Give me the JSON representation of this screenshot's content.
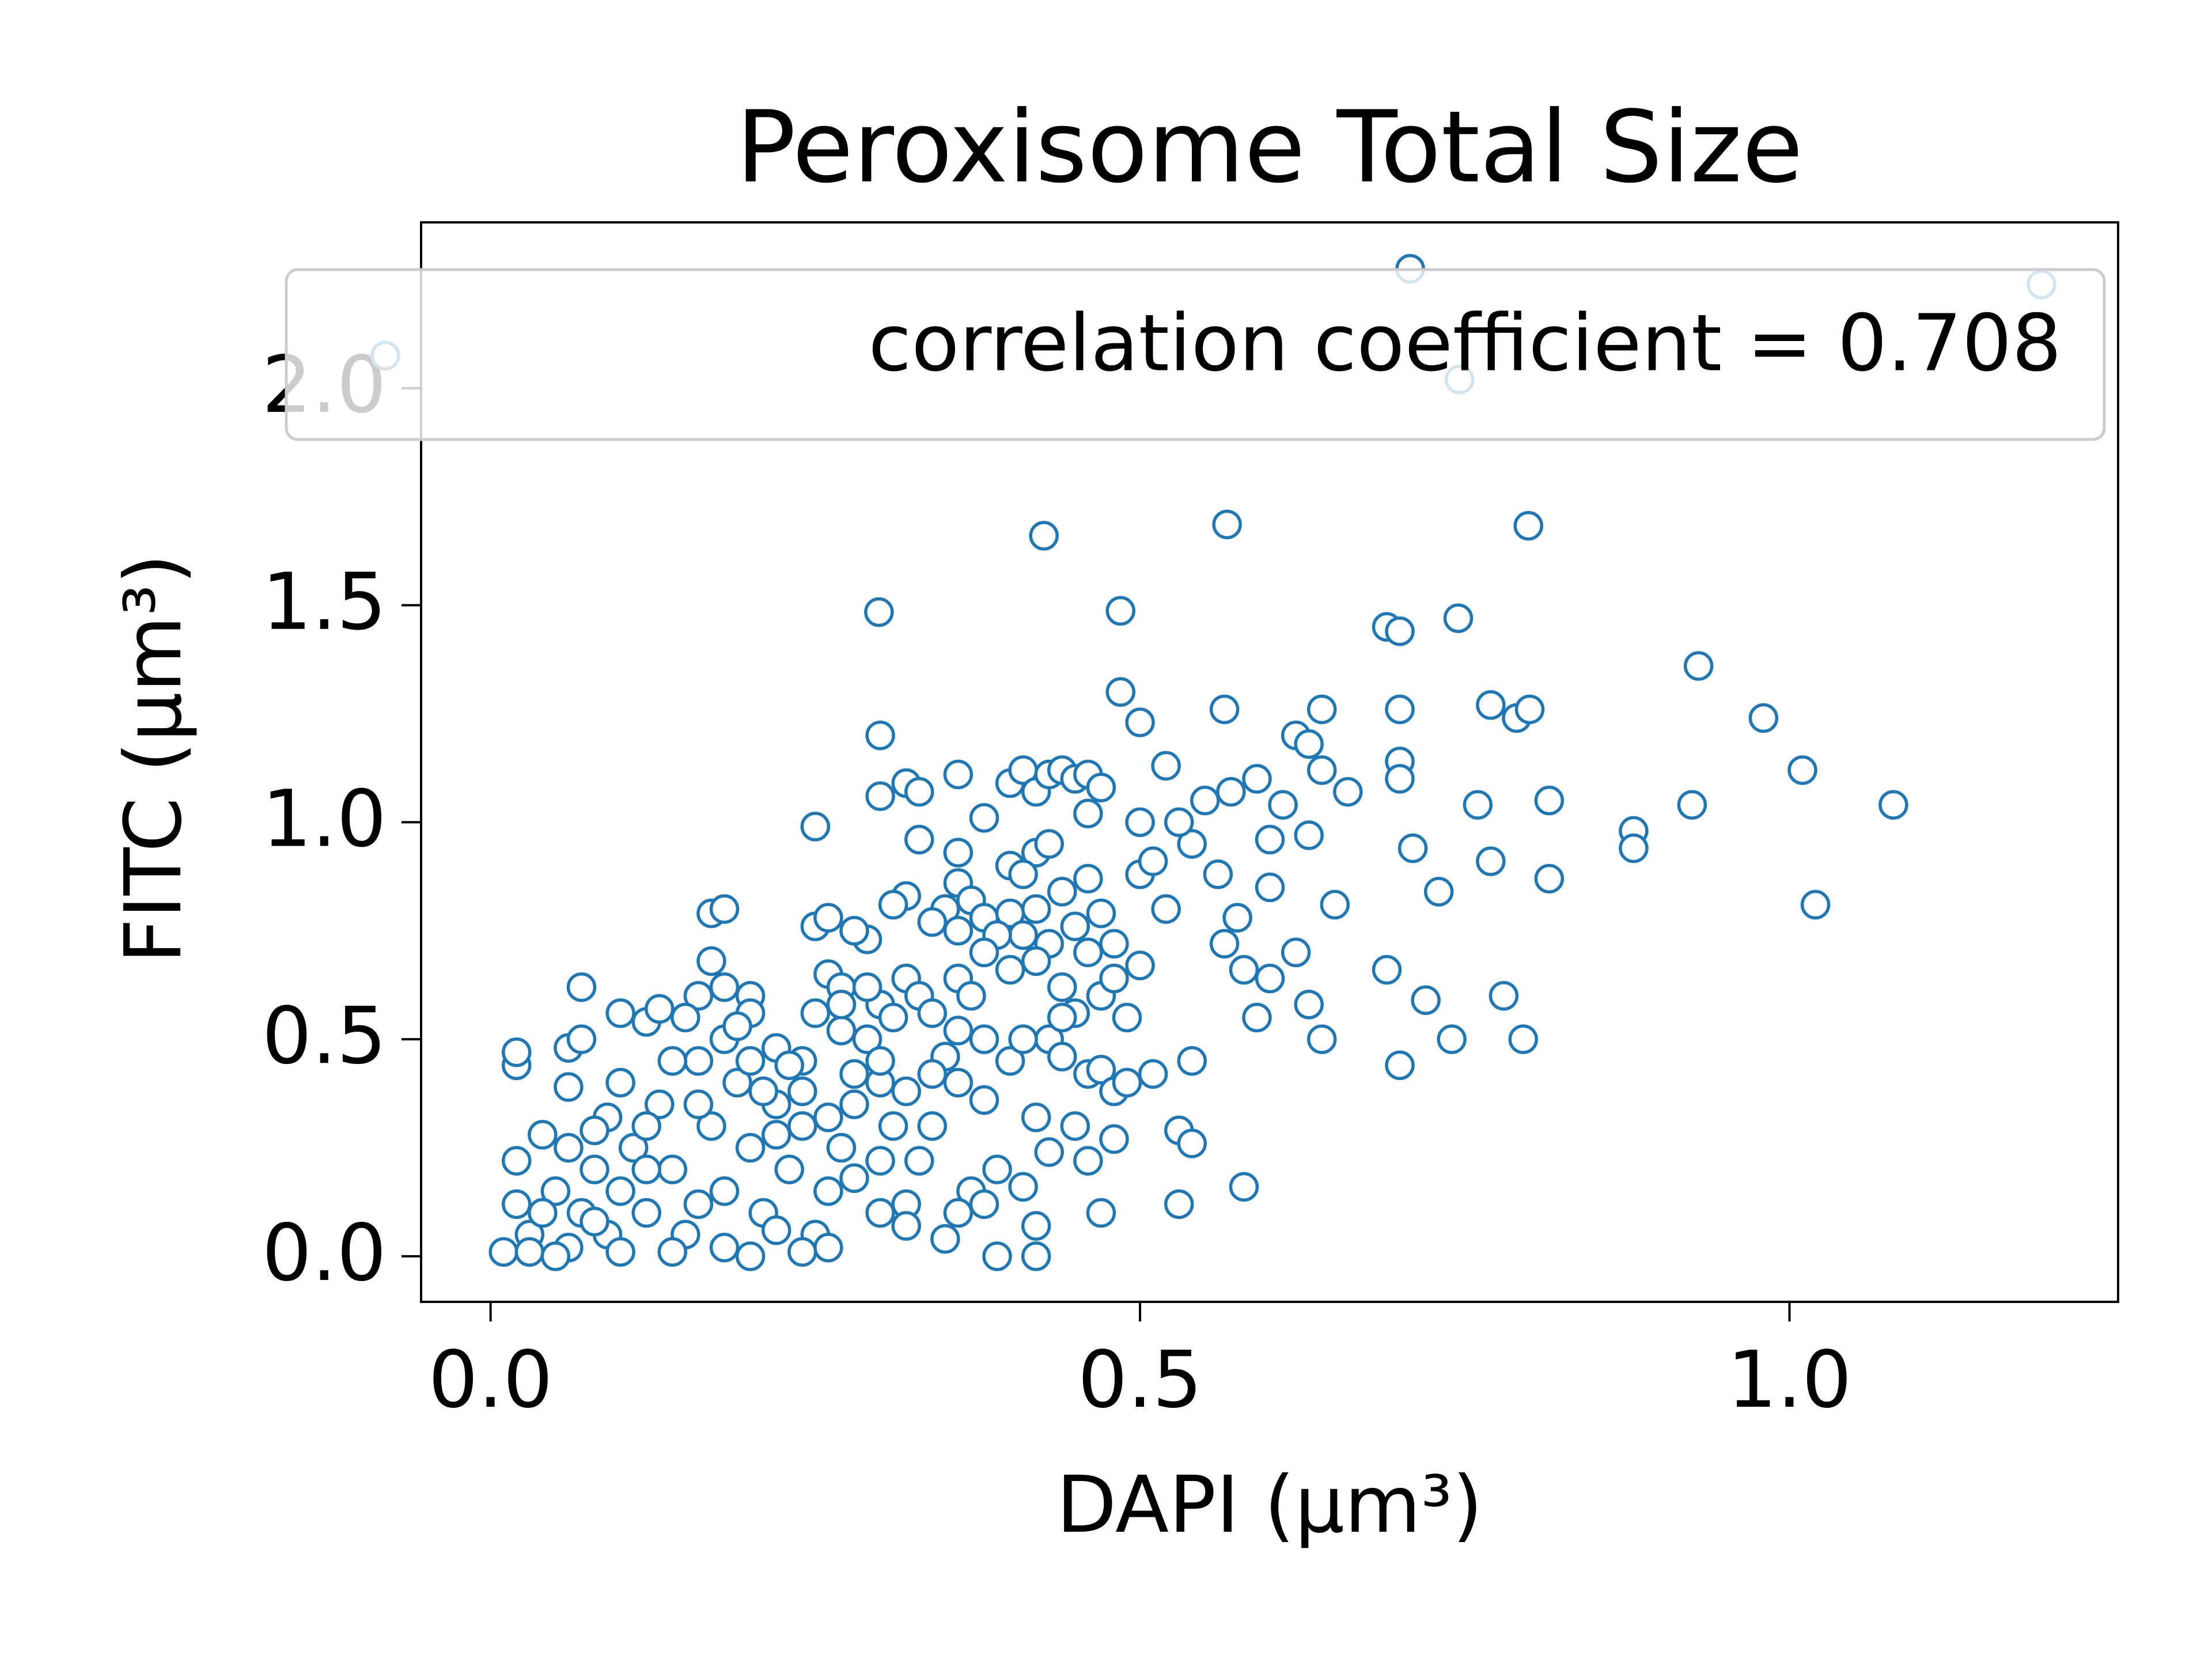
{
  "chart_data": {
    "type": "scatter",
    "title": "Peroxisome Total Size",
    "x_label": "DAPI (μm³)",
    "y_label": "FITC (μm³)",
    "annotation": "correlation coefficient = 0.708",
    "legend_loc": "upper right",
    "marker_color": "#1f77b4",
    "xlim": [
      -0.0535,
      1.253
    ],
    "ylim": [
      -0.105,
      2.382
    ],
    "xticks": [
      {
        "value": 0,
        "label": "0.0"
      },
      {
        "value": 0.5,
        "label": "0.5"
      },
      {
        "value": 1,
        "label": "1.0"
      }
    ],
    "yticks": [
      {
        "value": 0,
        "label": "0.0"
      },
      {
        "value": 0.5,
        "label": "0.5"
      },
      {
        "value": 1,
        "label": "1.0"
      },
      {
        "value": 1.5,
        "label": "1.5"
      },
      {
        "value": 2,
        "label": "2.0"
      }
    ],
    "x": [
      -0.081,
      0.708,
      1.194,
      0.746,
      0.426,
      0.567,
      0.799,
      0.299,
      0.485,
      0.69,
      0.7,
      0.745,
      0.93,
      0.98,
      1.01,
      1.08,
      1.02,
      0.88,
      0.88,
      0.925,
      0.815,
      0.815,
      0.76,
      0.77,
      0.78,
      0.795,
      0.73,
      0.72,
      0.74,
      0.7,
      0.69,
      0.77,
      0.79,
      0.8,
      0.7,
      0.7,
      0.7,
      0.71,
      0.62,
      0.63,
      0.64,
      0.64,
      0.66,
      0.63,
      0.65,
      0.6,
      0.6,
      0.61,
      0.59,
      0.57,
      0.565,
      0.55,
      0.52,
      0.5,
      0.485,
      0.54,
      0.56,
      0.575,
      0.565,
      0.58,
      0.6,
      0.62,
      0.63,
      0.64,
      0.59,
      0.58,
      0.54,
      0.53,
      0.54,
      0.53,
      0.51,
      0.5,
      0.49,
      0.5,
      0.51,
      0.52,
      0.53,
      0.5,
      0.3,
      0.3,
      0.32,
      0.33,
      0.36,
      0.38,
      0.4,
      0.41,
      0.42,
      0.43,
      0.44,
      0.45,
      0.46,
      0.47,
      0.46,
      0.42,
      0.43,
      0.4,
      0.41,
      0.36,
      0.36,
      0.33,
      0.32,
      0.31,
      0.35,
      0.37,
      0.38,
      0.4,
      0.42,
      0.44,
      0.46,
      0.45,
      0.47,
      0.48,
      0.46,
      0.43,
      0.41,
      0.39,
      0.36,
      0.34,
      0.29,
      0.28,
      0.25,
      0.26,
      0.25,
      0.17,
      0.18,
      0.07,
      0.1,
      0.06,
      0.07,
      0.02,
      0.02,
      0.06,
      0.09,
      0.12,
      0.13,
      0.16,
      0.17,
      0.18,
      0.2,
      0.2,
      0.22,
      0.24,
      0.26,
      0.27,
      0.25,
      0.27,
      0.3,
      0.32,
      0.33,
      0.34,
      0.36,
      0.37,
      0.38,
      0.4,
      0.42,
      0.44,
      0.45,
      0.47,
      0.48,
      0.43,
      0.44,
      0.46,
      0.47,
      0.48,
      0.49,
      0.45,
      0.46,
      0.47,
      0.48,
      0.42,
      0.43,
      0.41,
      0.42,
      0.42,
      0.39,
      0.39,
      0.37,
      0.38,
      0.36,
      0.35,
      0.34,
      0.33,
      0.32,
      0.3,
      0.31,
      0.3,
      0.29,
      0.28,
      0.27,
      0.26,
      0.25,
      0.24,
      0.23,
      0.22,
      0.21,
      0.2,
      0.19,
      0.18,
      0.17,
      0.16,
      0.15,
      0.14,
      0.13,
      0.12,
      0.11,
      0.1,
      0.09,
      0.08,
      0.07,
      0.06,
      0.05,
      0.04,
      0.03,
      0.02,
      0.01,
      0.02,
      0.03,
      0.05,
      0.08,
      0.1,
      0.12,
      0.14,
      0.16,
      0.18,
      0.2,
      0.22,
      0.24,
      0.26,
      0.28,
      0.3,
      0.32,
      0.35,
      0.36,
      0.38,
      0.4,
      0.41,
      0.44,
      0.38,
      0.36,
      0.34,
      0.32,
      0.3,
      0.28,
      0.26,
      0.24,
      0.22,
      0.2,
      0.18,
      0.16,
      0.14,
      0.12,
      0.1,
      0.08,
      0.06,
      0.04,
      0.15,
      0.19,
      0.21,
      0.23,
      0.27,
      0.29,
      0.31
    ],
    "y": [
      2.075,
      2.275,
      2.239,
      2.02,
      1.66,
      1.686,
      1.683,
      1.484,
      1.487,
      1.45,
      1.44,
      1.47,
      1.36,
      1.24,
      1.12,
      1.04,
      0.81,
      0.98,
      0.94,
      1.04,
      1.05,
      0.87,
      1.04,
      0.91,
      0.6,
      0.5,
      0.84,
      0.59,
      0.5,
      0.44,
      0.66,
      1.27,
      1.24,
      1.26,
      1.26,
      1.14,
      1.1,
      0.94,
      1.2,
      1.18,
      1.26,
      1.12,
      1.07,
      0.97,
      0.81,
      0.85,
      0.96,
      1.04,
      1.1,
      1.07,
      1.26,
      1.05,
      1.13,
      1.23,
      1.3,
      0.95,
      0.88,
      0.78,
      0.72,
      0.66,
      0.64,
      0.7,
      0.58,
      0.5,
      0.55,
      0.16,
      0.45,
      0.29,
      0.26,
      0.12,
      0.42,
      0.67,
      0.55,
      0.88,
      0.91,
      0.8,
      1.0,
      1.0,
      1.2,
      1.06,
      1.09,
      1.07,
      1.11,
      1.01,
      1.09,
      1.12,
      1.07,
      1.11,
      1.12,
      1.1,
      1.11,
      1.08,
      1.02,
      0.93,
      0.95,
      0.9,
      0.88,
      0.93,
      0.86,
      0.96,
      0.83,
      0.81,
      0.8,
      0.82,
      0.78,
      0.79,
      0.8,
      0.84,
      0.87,
      0.76,
      0.79,
      0.72,
      0.7,
      0.72,
      0.74,
      0.74,
      0.75,
      0.77,
      0.73,
      0.75,
      0.76,
      0.78,
      0.99,
      0.79,
      0.8,
      0.62,
      0.56,
      0.48,
      0.5,
      0.44,
      0.47,
      0.39,
      0.32,
      0.54,
      0.57,
      0.6,
      0.68,
      0.62,
      0.6,
      0.56,
      0.48,
      0.45,
      0.65,
      0.62,
      0.56,
      0.52,
      0.58,
      0.64,
      0.6,
      0.56,
      0.64,
      0.6,
      0.7,
      0.66,
      0.68,
      0.62,
      0.56,
      0.6,
      0.64,
      0.5,
      0.46,
      0.42,
      0.43,
      0.38,
      0.4,
      0.3,
      0.22,
      0.1,
      0.27,
      0.32,
      0.24,
      0.16,
      0.07,
      0,
      0,
      0.2,
      0.15,
      0.36,
      0.4,
      0.46,
      0.3,
      0.22,
      0.12,
      0.1,
      0.3,
      0.4,
      0.5,
      0.35,
      0.25,
      0.15,
      0.05,
      0.3,
      0.2,
      0.35,
      0.1,
      0.25,
      0.4,
      0.15,
      0.3,
      0.45,
      0.05,
      0.2,
      0.35,
      0.1,
      0.25,
      0.4,
      0.05,
      0.2,
      0.1,
      0.02,
      0.15,
      0.28,
      0.05,
      0.22,
      0.01,
      0.12,
      0.01,
      0,
      0.29,
      0.01,
      0.3,
      0.01,
      0.12,
      0.02,
      0,
      0.06,
      0.01,
      0.02,
      0.18,
      0.22,
      0.07,
      0.04,
      0.1,
      0.12,
      0.45,
      0.5,
      0.55,
      0.5,
      0.52,
      0.42,
      0.38,
      0.45,
      0.42,
      0.32,
      0.38,
      0.28,
      0.45,
      0.5,
      0.35,
      0.45,
      0.2,
      0.15,
      0.08,
      0.25,
      0.1,
      0.55,
      0.53,
      0.38,
      0.44,
      0.58,
      0.62,
      0.55
    ]
  }
}
